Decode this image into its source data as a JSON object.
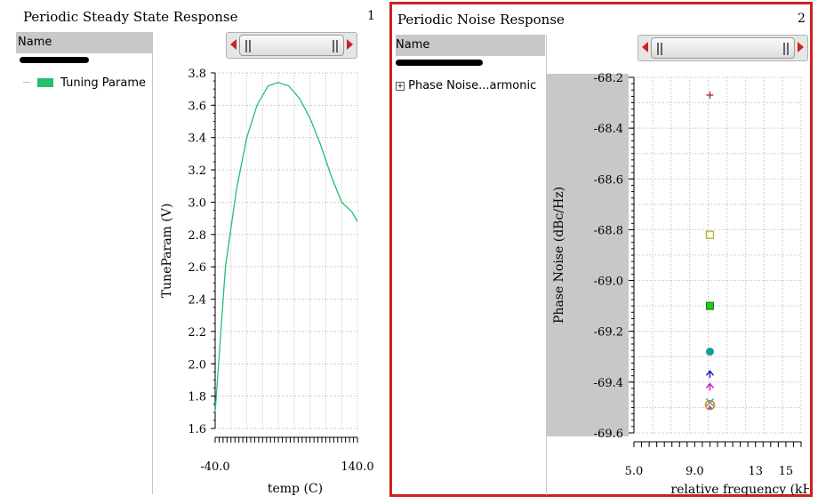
{
  "panel1": {
    "title": "Periodic Steady State Response",
    "number": "1",
    "name_header": "Name",
    "tree_item": "Tuning Parame",
    "tree_item_color": "#22c070"
  },
  "panel2": {
    "title": "Periodic Noise Response",
    "number": "2",
    "name_header": "Name",
    "tree_item": "Phase Noise...armonic",
    "border_color": "#cc2222"
  },
  "chart_data": [
    {
      "type": "line",
      "title": "",
      "xlabel": "temp (C)",
      "ylabel": "TuneParam (V)",
      "xlim": [
        -40,
        140
      ],
      "ylim": [
        1.6,
        3.8
      ],
      "xticks": [
        -40.0,
        140.0
      ],
      "xtick_labels": [
        "-40.0",
        "140.0"
      ],
      "yticks": [
        1.6,
        1.8,
        2.0,
        2.2,
        2.4,
        2.6,
        2.8,
        3.0,
        3.2,
        3.4,
        3.6,
        3.8
      ],
      "ytick_labels": [
        "1.6",
        "1.8",
        "2.0",
        "2.2",
        "2.4",
        "2.6",
        "2.8",
        "3.0",
        "3.2",
        "3.4",
        "3.6",
        "3.8"
      ],
      "grid": true,
      "series": [
        {
          "color": "#22c070",
          "x": [
            -40,
            -27,
            -13,
            0,
            13,
            27,
            40,
            53,
            67,
            80,
            93,
            107,
            120,
            133,
            140
          ],
          "y": [
            1.7,
            2.6,
            3.08,
            3.4,
            3.6,
            3.72,
            3.74,
            3.72,
            3.64,
            3.52,
            3.36,
            3.16,
            3.0,
            2.94,
            2.88
          ]
        }
      ]
    },
    {
      "type": "scatter",
      "title": "",
      "xlabel": "relative frequency (kHz)",
      "ylabel": "Phase Noise (dBc/Hz)",
      "xlim": [
        5,
        16
      ],
      "ylim": [
        -69.6,
        -68.2
      ],
      "xticks": [
        5.0,
        9.0,
        13,
        15
      ],
      "xtick_labels": [
        "5.0",
        "9.0",
        "13",
        "15"
      ],
      "yticks": [
        -69.6,
        -69.4,
        -69.2,
        -69.0,
        -68.8,
        -68.6,
        -68.4,
        -68.2
      ],
      "ytick_labels": [
        "-69.6",
        "-69.4",
        "-69.2",
        "-69.0",
        "-68.8",
        "-68.6",
        "-68.4",
        "-68.2"
      ],
      "grid": true,
      "points": [
        {
          "x": 10,
          "y": -68.27,
          "marker": "plus",
          "color": "#b02020"
        },
        {
          "x": 10,
          "y": -68.82,
          "marker": "square-open",
          "color": "#b0b030"
        },
        {
          "x": 10,
          "y": -69.1,
          "marker": "square",
          "color": "#22cc22"
        },
        {
          "x": 10,
          "y": -69.28,
          "marker": "circle",
          "color": "#1a9a9a"
        },
        {
          "x": 10,
          "y": -69.37,
          "marker": "arrow",
          "color": "#2222cc"
        },
        {
          "x": 10,
          "y": -69.42,
          "marker": "arrow",
          "color": "#cc22cc"
        },
        {
          "x": 10,
          "y": -69.48,
          "marker": "x",
          "color": "#30b0b0"
        },
        {
          "x": 10,
          "y": -69.49,
          "marker": "circle-open",
          "color": "#e08020"
        },
        {
          "x": 10,
          "y": -69.5,
          "marker": "triangle",
          "color": "#c05090"
        }
      ]
    }
  ]
}
